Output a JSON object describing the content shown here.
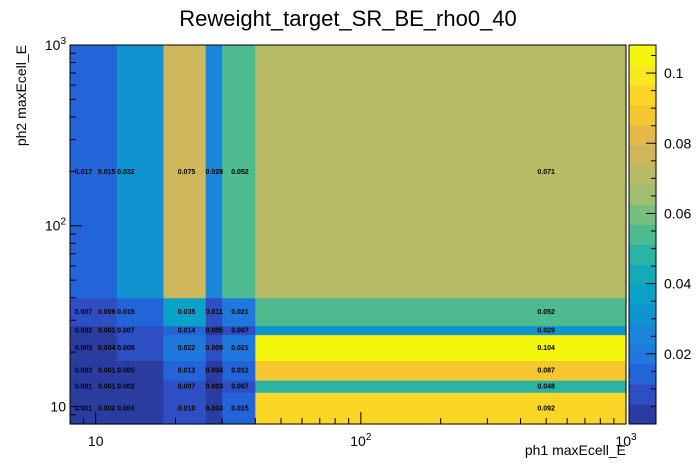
{
  "chart_data": {
    "type": "heatmap",
    "title": "Reweight_target_SR_BE_rho0_40",
    "xlabel": "ph1 maxEcell_E",
    "ylabel": "ph2 maxEcell_E",
    "xscale": "log",
    "yscale": "log",
    "xlim": [
      8,
      1000
    ],
    "ylim": [
      8,
      1000
    ],
    "x_ticks": [
      {
        "value": 10,
        "base": "10",
        "exp": ""
      },
      {
        "value": 100,
        "base": "10",
        "exp": "2"
      },
      {
        "value": 1000,
        "base": "10",
        "exp": "3"
      }
    ],
    "y_ticks": [
      {
        "value": 10,
        "base": "10",
        "exp": ""
      },
      {
        "value": 100,
        "base": "10",
        "exp": "2"
      },
      {
        "value": 1000,
        "base": "10",
        "exp": "3"
      }
    ],
    "x_edges": [
      8,
      10,
      12,
      14,
      18,
      26,
      30,
      40,
      1000
    ],
    "y_edges": [
      8,
      12,
      14,
      18,
      25,
      28,
      40,
      1000
    ],
    "value_label_x": [
      9,
      11,
      13,
      16,
      22,
      28,
      35,
      500
    ],
    "values": [
      [
        0.001,
        0.002,
        0.004,
        0.004,
        0.01,
        0.004,
        0.015,
        0.092
      ],
      [
        0.001,
        0.001,
        0.002,
        0.002,
        0.007,
        0.003,
        0.007,
        0.048
      ],
      [
        0.003,
        0.001,
        0.005,
        0.005,
        0.013,
        0.004,
        0.012,
        0.087
      ],
      [
        0.005,
        0.004,
        0.008,
        0.008,
        0.022,
        0.009,
        0.021,
        0.104
      ],
      [
        0.002,
        0.001,
        0.007,
        0.007,
        0.014,
        0.005,
        0.007,
        0.029
      ],
      [
        0.007,
        0.006,
        0.015,
        0.015,
        0.035,
        0.011,
        0.021,
        0.052
      ],
      [
        0.017,
        0.015,
        0.032,
        0.032,
        0.075,
        0.028,
        0.052,
        0.071
      ]
    ],
    "labels": [
      [
        "0.001",
        "0.002",
        "0.004",
        "",
        "0.010",
        "0.004",
        "0.015",
        "0.092"
      ],
      [
        "0.001",
        "0.001",
        "0.002",
        "",
        "0.007",
        "0.003",
        "0.007",
        "0.048"
      ],
      [
        "0.003",
        "0.001",
        "0.005",
        "",
        "0.013",
        "0.004",
        "0.012",
        "0.087"
      ],
      [
        "0.005",
        "0.004",
        "0.008",
        "",
        "0.022",
        "0.009",
        "0.021",
        "0.104"
      ],
      [
        "0.002",
        "0.001",
        "0.007",
        "",
        "0.014",
        "0.005",
        "0.007",
        "0.029"
      ],
      [
        "0.007",
        "0.006",
        "0.015",
        "",
        "0.035",
        "0.011",
        "0.021",
        "0.052"
      ],
      [
        "0.017",
        "0.015",
        "0.032",
        "",
        "0.075",
        "0.028",
        "0.052",
        "0.071"
      ]
    ],
    "zlim": [
      0,
      0.108
    ],
    "colorbar_ticks": [
      {
        "value": 0.02,
        "label": "0.02"
      },
      {
        "value": 0.04,
        "label": "0.04"
      },
      {
        "value": 0.06,
        "label": "0.06"
      },
      {
        "value": 0.08,
        "label": "0.08"
      },
      {
        "value": 0.1,
        "label": "0.1"
      }
    ],
    "palette": [
      "#2b3ca0",
      "#2e4fc4",
      "#2364d9",
      "#1f78de",
      "#1a85d9",
      "#0f93d0",
      "#0aa2c8",
      "#15aab8",
      "#2ab4a4",
      "#4dba90",
      "#76bf7f",
      "#9fbf6e",
      "#b8bb66",
      "#cdb75a",
      "#e4b94a",
      "#f6c62f",
      "#fcd627",
      "#f8e81e",
      "#f5f60e"
    ]
  }
}
